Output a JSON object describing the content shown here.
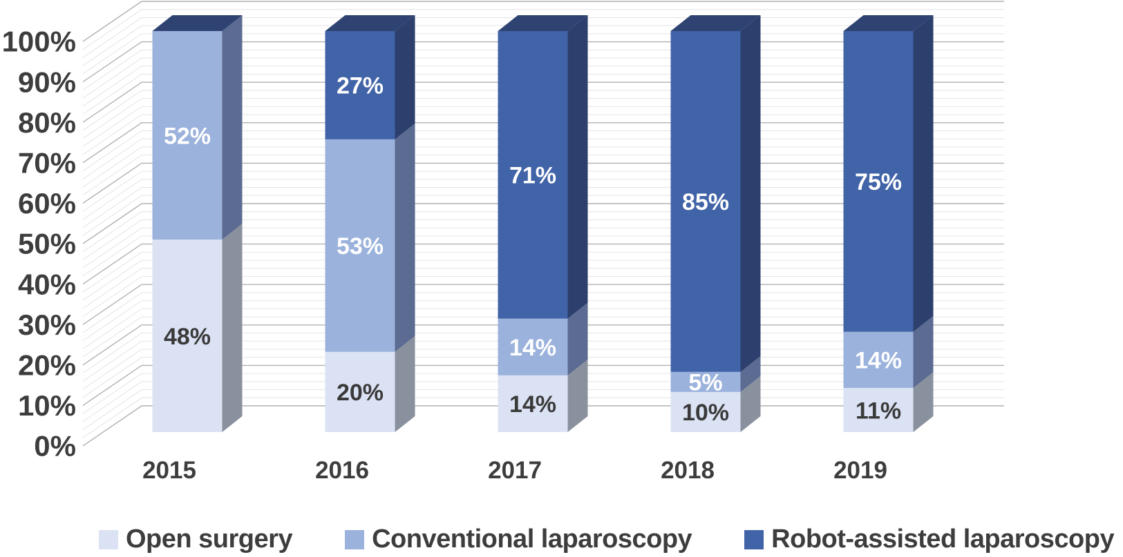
{
  "chart_data": {
    "type": "bar",
    "variant": "3d-stacked-100-percent",
    "title": "",
    "xlabel": "",
    "ylabel": "",
    "categories": [
      "2015",
      "2016",
      "2017",
      "2018",
      "2019"
    ],
    "series": [
      {
        "name": "Open surgery",
        "values": [
          48,
          20,
          14,
          10,
          11
        ],
        "labels": [
          "48%",
          "20%",
          "14%",
          "10%",
          "11%"
        ],
        "front_color": "#dbe2f3",
        "side_color": "#8a919e",
        "label_color": "#3a3a3a"
      },
      {
        "name": "Conventional laparoscopy",
        "values": [
          52,
          53,
          14,
          5,
          14
        ],
        "labels": [
          "52%",
          "53%",
          "14%",
          "5%",
          "14%"
        ],
        "front_color": "#9bb2dc",
        "side_color": "#5b6b91",
        "label_color": "#ffffff"
      },
      {
        "name": "Robot-assisted laparoscopy",
        "values": [
          0,
          27,
          71,
          85,
          75
        ],
        "labels": [
          "",
          "27%",
          "71%",
          "85%",
          "75%"
        ],
        "front_color": "#4163a7",
        "side_color": "#2c3f6d",
        "label_color": "#ffffff"
      }
    ],
    "y_axis": {
      "min": 0,
      "max": 100,
      "major_step": 10,
      "minor_step": 2,
      "tick_labels": [
        "0%",
        "10%",
        "20%",
        "30%",
        "40%",
        "50%",
        "60%",
        "70%",
        "80%",
        "90%",
        "100%"
      ]
    },
    "grid": "on",
    "legend_position": "bottom",
    "colors": {
      "top_face": "#2e4372",
      "grid_major": "#b0b0b0",
      "grid_minor": "#e4e4e4",
      "axis_text": "#3d3d3d",
      "background": "#ffffff"
    }
  }
}
